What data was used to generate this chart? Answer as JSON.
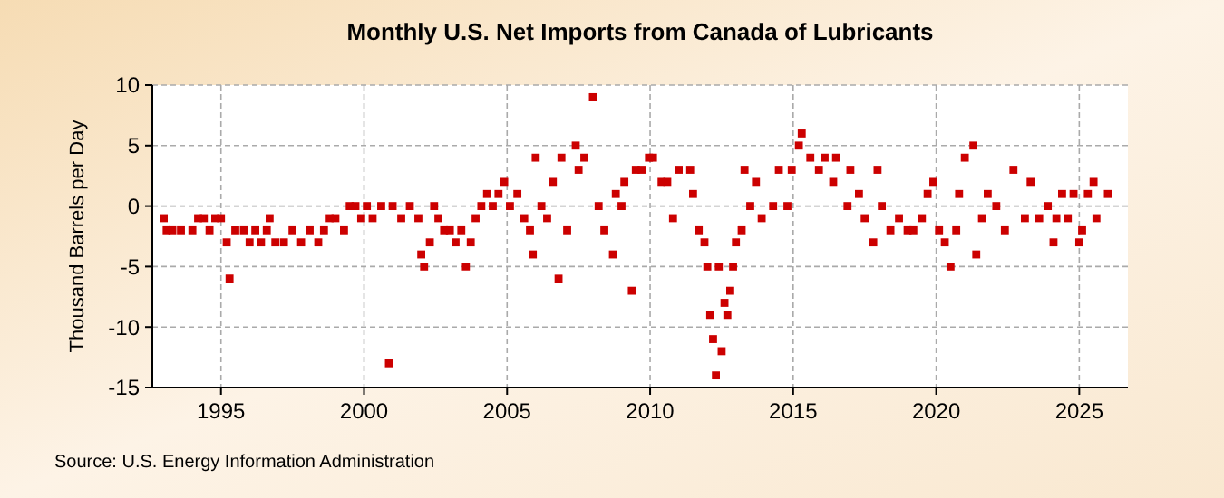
{
  "chart_data": {
    "type": "scatter",
    "title": "Monthly U.S. Net Imports from Canada of Lubricants",
    "ylabel": "Thousand Barrels per Day",
    "annotations": [
      "Source: U.S. Energy Information Administration"
    ],
    "xlim": [
      1992.6,
      2026.7
    ],
    "xticks": [
      1995,
      2000,
      2005,
      2010,
      2015,
      2020,
      2025
    ],
    "ylim": [
      -15,
      10
    ],
    "yticks": [
      -15,
      -10,
      -5,
      0,
      5,
      10
    ],
    "grid": true,
    "marker": "square",
    "series": [
      {
        "color": "#cc0000",
        "x": [
          1993.0,
          1993.1,
          1993.3,
          1993.6,
          1994.0,
          1994.2,
          1994.4,
          1994.6,
          1994.8,
          1995.0,
          1995.2,
          1995.3,
          1995.5,
          1995.8,
          1996.0,
          1996.2,
          1996.4,
          1996.6,
          1996.7,
          1996.9,
          1997.2,
          1997.5,
          1997.8,
          1998.1,
          1998.4,
          1998.6,
          1998.8,
          1999.0,
          1999.3,
          1999.5,
          1999.7,
          1999.9,
          2000.1,
          2000.3,
          2000.6,
          2000.87,
          2001.0,
          2001.3,
          2001.6,
          2001.9,
          2002.0,
          2002.1,
          2002.3,
          2002.45,
          2002.6,
          2002.8,
          2003.0,
          2003.2,
          2003.4,
          2003.56,
          2003.73,
          2003.9,
          2004.1,
          2004.3,
          2004.5,
          2004.7,
          2004.9,
          2005.1,
          2005.36,
          2005.6,
          2005.8,
          2005.9,
          2006.0,
          2006.2,
          2006.4,
          2006.6,
          2006.8,
          2006.9,
          2007.1,
          2007.4,
          2007.5,
          2007.7,
          2008.0,
          2008.2,
          2008.4,
          2008.7,
          2008.8,
          2009.0,
          2009.1,
          2009.36,
          2009.5,
          2009.7,
          2009.96,
          2010.1,
          2010.4,
          2010.6,
          2010.8,
          2011.0,
          2011.4,
          2011.5,
          2011.7,
          2011.9,
          2012.0,
          2012.1,
          2012.2,
          2012.3,
          2012.4,
          2012.5,
          2012.6,
          2012.7,
          2012.8,
          2012.9,
          2013.0,
          2013.2,
          2013.3,
          2013.5,
          2013.7,
          2013.9,
          2014.3,
          2014.5,
          2014.8,
          2014.95,
          2015.2,
          2015.3,
          2015.6,
          2015.9,
          2016.1,
          2016.4,
          2016.5,
          2016.9,
          2017.0,
          2017.3,
          2017.5,
          2017.8,
          2017.95,
          2018.1,
          2018.4,
          2018.7,
          2019.0,
          2019.2,
          2019.5,
          2019.7,
          2019.9,
          2020.1,
          2020.3,
          2020.5,
          2020.7,
          2020.8,
          2021.0,
          2021.3,
          2021.4,
          2021.6,
          2021.8,
          2022.1,
          2022.4,
          2022.7,
          2023.1,
          2023.3,
          2023.6,
          2023.9,
          2024.1,
          2024.2,
          2024.4,
          2024.6,
          2024.8,
          2025.0,
          2025.1,
          2025.3,
          2025.5,
          2025.6,
          2026.0
        ],
        "values": [
          -1,
          -2,
          -2,
          -2,
          -2,
          -1,
          -1,
          -2,
          -1,
          -1,
          -3,
          -6,
          -2,
          -2,
          -3,
          -2,
          -3,
          -2,
          -1,
          -3,
          -3,
          -2,
          -3,
          -2,
          -3,
          -2,
          -1,
          -1,
          -2,
          0,
          0,
          -1,
          0,
          -1,
          0,
          -13,
          0,
          -1,
          0,
          -1,
          -4,
          -5,
          -3,
          0,
          -1,
          -2,
          -2,
          -3,
          -2,
          -5,
          -3,
          -1,
          0,
          1,
          0,
          1,
          2,
          0,
          1,
          -1,
          -2,
          -4,
          4,
          0,
          -1,
          2,
          -6,
          4,
          -2,
          5,
          3,
          4,
          9,
          0,
          -2,
          -4,
          1,
          0,
          2,
          -7,
          3,
          3,
          4,
          4,
          2,
          2,
          -1,
          3,
          3,
          1,
          -2,
          -3,
          -5,
          -9,
          -11,
          -14,
          -5,
          -12,
          -8,
          -9,
          -7,
          -5,
          -3,
          -2,
          3,
          0,
          2,
          -1,
          0,
          3,
          0,
          3,
          5,
          6,
          4,
          3,
          4,
          2,
          4,
          0,
          3,
          1,
          -1,
          -3,
          3,
          0,
          -2,
          -1,
          -2,
          -2,
          -1,
          1,
          2,
          -2,
          -3,
          -5,
          -2,
          1,
          4,
          5,
          -4,
          -1,
          1,
          0,
          -2,
          3,
          -1,
          2,
          -1,
          0,
          -3,
          -1,
          1,
          -1,
          1,
          -3,
          -2,
          1,
          2,
          -1,
          1
        ]
      }
    ]
  }
}
